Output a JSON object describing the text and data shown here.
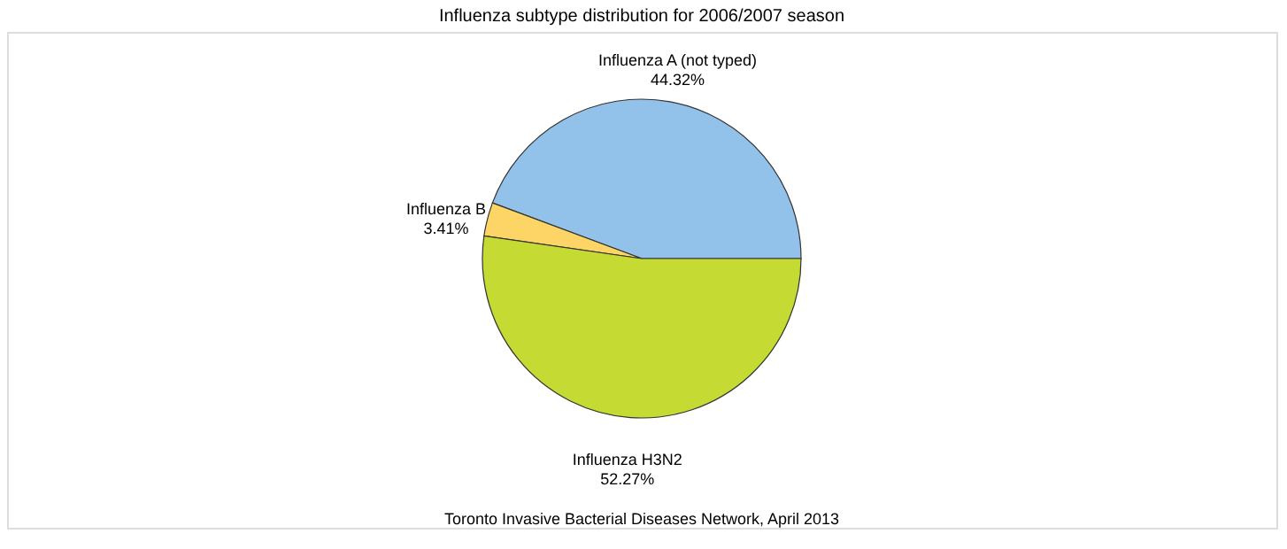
{
  "chart_data": {
    "type": "pie",
    "title": "Influenza subtype distribution for 2006/2007 season",
    "categories": [
      "Influenza A (not typed)",
      "Influenza B",
      "Influenza H3N2"
    ],
    "values": [
      44.32,
      3.41,
      52.27
    ],
    "value_labels": [
      "44.32%",
      "3.41%",
      "52.27%"
    ],
    "colors": [
      "#92c2ea",
      "#fdd566",
      "#c5da33"
    ],
    "legend": false,
    "annotations": [
      "Toronto Invasive Bacterial Diseases Network,  April 2013"
    ]
  }
}
